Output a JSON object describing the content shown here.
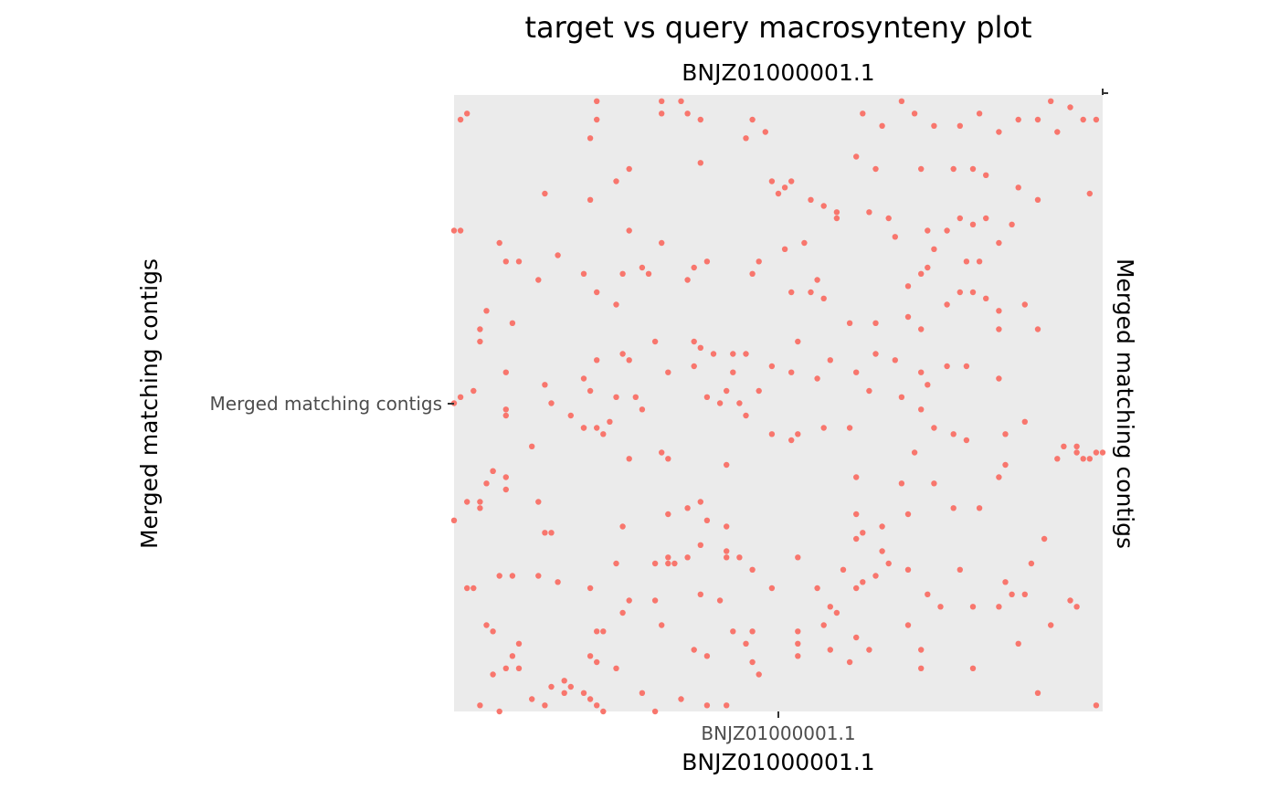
{
  "chart_data": {
    "type": "scatter",
    "title": "target vs query macrosynteny plot",
    "xlabel": "BNJZ01000001.1",
    "xlabel_top": "BNJZ01000001.1",
    "ylabel": "Merged matching contigs",
    "ylabel_right": "Merged matching contigs",
    "x_tick_labels": [
      "BNJZ01000001.1"
    ],
    "y_tick_labels": [
      "Merged matching contigs"
    ],
    "xlim": [
      0,
      1
    ],
    "ylim": [
      0,
      1
    ],
    "grid": false,
    "panel_background": "#ebebeb",
    "point_color": "#f8766d",
    "series": [
      {
        "points": [
          [
            0.01,
            0.96
          ],
          [
            0.02,
            0.97
          ],
          [
            0.22,
            0.99
          ],
          [
            0.22,
            0.96
          ],
          [
            0.21,
            0.93
          ],
          [
            0.32,
            0.99
          ],
          [
            0.35,
            0.99
          ],
          [
            0.32,
            0.97
          ],
          [
            0.36,
            0.97
          ],
          [
            0.38,
            0.96
          ],
          [
            0.46,
            0.96
          ],
          [
            0.48,
            0.94
          ],
          [
            0.45,
            0.93
          ],
          [
            0.63,
            0.97
          ],
          [
            0.66,
            0.95
          ],
          [
            0.69,
            0.99
          ],
          [
            0.71,
            0.97
          ],
          [
            0.74,
            0.95
          ],
          [
            0.78,
            0.95
          ],
          [
            0.81,
            0.97
          ],
          [
            0.84,
            0.94
          ],
          [
            0.87,
            0.96
          ],
          [
            0.9,
            0.96
          ],
          [
            0.92,
            0.99
          ],
          [
            0.95,
            0.98
          ],
          [
            0.97,
            0.96
          ],
          [
            0.99,
            0.96
          ],
          [
            0.93,
            0.94
          ],
          [
            0.27,
            0.88
          ],
          [
            0.25,
            0.86
          ],
          [
            0.38,
            0.89
          ],
          [
            0.49,
            0.86
          ],
          [
            0.5,
            0.84
          ],
          [
            0.51,
            0.85
          ],
          [
            0.52,
            0.86
          ],
          [
            0.55,
            0.83
          ],
          [
            0.57,
            0.82
          ],
          [
            0.59,
            0.81
          ],
          [
            0.62,
            0.9
          ],
          [
            0.65,
            0.88
          ],
          [
            0.72,
            0.88
          ],
          [
            0.77,
            0.88
          ],
          [
            0.8,
            0.88
          ],
          [
            0.82,
            0.87
          ],
          [
            0.87,
            0.85
          ],
          [
            0.9,
            0.83
          ],
          [
            0.98,
            0.84
          ],
          [
            0.14,
            0.84
          ],
          [
            0.21,
            0.83
          ],
          [
            0.13,
            0.7
          ],
          [
            0.0,
            0.78
          ],
          [
            0.01,
            0.78
          ],
          [
            0.07,
            0.76
          ],
          [
            0.08,
            0.73
          ],
          [
            0.1,
            0.73
          ],
          [
            0.16,
            0.74
          ],
          [
            0.2,
            0.71
          ],
          [
            0.27,
            0.78
          ],
          [
            0.32,
            0.76
          ],
          [
            0.39,
            0.73
          ],
          [
            0.46,
            0.71
          ],
          [
            0.47,
            0.73
          ],
          [
            0.51,
            0.75
          ],
          [
            0.54,
            0.76
          ],
          [
            0.59,
            0.8
          ],
          [
            0.64,
            0.81
          ],
          [
            0.67,
            0.8
          ],
          [
            0.68,
            0.77
          ],
          [
            0.73,
            0.78
          ],
          [
            0.74,
            0.75
          ],
          [
            0.76,
            0.78
          ],
          [
            0.78,
            0.8
          ],
          [
            0.8,
            0.79
          ],
          [
            0.82,
            0.8
          ],
          [
            0.86,
            0.79
          ],
          [
            0.84,
            0.76
          ],
          [
            0.81,
            0.73
          ],
          [
            0.79,
            0.73
          ],
          [
            0.73,
            0.72
          ],
          [
            0.72,
            0.71
          ],
          [
            0.7,
            0.69
          ],
          [
            0.26,
            0.71
          ],
          [
            0.29,
            0.72
          ],
          [
            0.3,
            0.71
          ],
          [
            0.36,
            0.7
          ],
          [
            0.37,
            0.72
          ],
          [
            0.22,
            0.68
          ],
          [
            0.25,
            0.66
          ],
          [
            0.09,
            0.63
          ],
          [
            0.05,
            0.65
          ],
          [
            0.04,
            0.62
          ],
          [
            0.04,
            0.6
          ],
          [
            0.08,
            0.55
          ],
          [
            0.01,
            0.51
          ],
          [
            0.0,
            0.5
          ],
          [
            0.08,
            0.49
          ],
          [
            0.31,
            0.6
          ],
          [
            0.38,
            0.59
          ],
          [
            0.4,
            0.58
          ],
          [
            0.56,
            0.7
          ],
          [
            0.52,
            0.68
          ],
          [
            0.55,
            0.68
          ],
          [
            0.57,
            0.67
          ],
          [
            0.61,
            0.63
          ],
          [
            0.65,
            0.63
          ],
          [
            0.7,
            0.64
          ],
          [
            0.72,
            0.62
          ],
          [
            0.76,
            0.66
          ],
          [
            0.78,
            0.68
          ],
          [
            0.8,
            0.68
          ],
          [
            0.82,
            0.67
          ],
          [
            0.84,
            0.65
          ],
          [
            0.84,
            0.62
          ],
          [
            0.88,
            0.66
          ],
          [
            0.9,
            0.62
          ],
          [
            0.37,
            0.6
          ],
          [
            0.45,
            0.58
          ],
          [
            0.49,
            0.56
          ],
          [
            0.53,
            0.6
          ],
          [
            0.58,
            0.57
          ],
          [
            0.62,
            0.55
          ],
          [
            0.65,
            0.58
          ],
          [
            0.68,
            0.57
          ],
          [
            0.72,
            0.55
          ],
          [
            0.76,
            0.56
          ],
          [
            0.79,
            0.56
          ],
          [
            0.84,
            0.54
          ],
          [
            0.73,
            0.53
          ],
          [
            0.64,
            0.52
          ],
          [
            0.56,
            0.54
          ],
          [
            0.52,
            0.55
          ],
          [
            0.47,
            0.52
          ],
          [
            0.2,
            0.54
          ],
          [
            0.22,
            0.57
          ],
          [
            0.26,
            0.58
          ],
          [
            0.27,
            0.57
          ],
          [
            0.21,
            0.52
          ],
          [
            0.25,
            0.51
          ],
          [
            0.28,
            0.51
          ],
          [
            0.33,
            0.55
          ],
          [
            0.37,
            0.56
          ],
          [
            0.43,
            0.58
          ],
          [
            0.43,
            0.55
          ],
          [
            0.42,
            0.52
          ],
          [
            0.44,
            0.5
          ],
          [
            0.45,
            0.48
          ],
          [
            0.41,
            0.5
          ],
          [
            0.39,
            0.51
          ],
          [
            0.03,
            0.52
          ],
          [
            0.08,
            0.48
          ],
          [
            0.14,
            0.53
          ],
          [
            0.15,
            0.5
          ],
          [
            0.18,
            0.48
          ],
          [
            0.2,
            0.46
          ],
          [
            0.23,
            0.45
          ],
          [
            0.24,
            0.47
          ],
          [
            0.22,
            0.46
          ],
          [
            0.29,
            0.49
          ],
          [
            0.32,
            0.42
          ],
          [
            0.33,
            0.41
          ],
          [
            0.49,
            0.45
          ],
          [
            0.53,
            0.45
          ],
          [
            0.57,
            0.46
          ],
          [
            0.61,
            0.46
          ],
          [
            0.69,
            0.51
          ],
          [
            0.72,
            0.49
          ],
          [
            0.77,
            0.45
          ],
          [
            0.79,
            0.44
          ],
          [
            0.71,
            0.42
          ],
          [
            0.74,
            0.46
          ],
          [
            0.96,
            0.43
          ],
          [
            0.97,
            0.41
          ],
          [
            0.98,
            0.41
          ],
          [
            0.99,
            0.42
          ],
          [
            1.0,
            0.42
          ],
          [
            0.93,
            0.41
          ],
          [
            0.85,
            0.4
          ],
          [
            0.84,
            0.38
          ],
          [
            0.27,
            0.41
          ],
          [
            0.2,
            0.46
          ],
          [
            0.12,
            0.43
          ],
          [
            0.06,
            0.39
          ],
          [
            0.06,
            0.39
          ],
          [
            0.05,
            0.37
          ],
          [
            0.04,
            0.34
          ],
          [
            0.02,
            0.34
          ],
          [
            0.0,
            0.31
          ],
          [
            0.04,
            0.33
          ],
          [
            0.13,
            0.34
          ],
          [
            0.14,
            0.29
          ],
          [
            0.15,
            0.29
          ],
          [
            0.08,
            0.38
          ],
          [
            0.08,
            0.36
          ],
          [
            0.42,
            0.4
          ],
          [
            0.52,
            0.44
          ],
          [
            0.38,
            0.34
          ],
          [
            0.33,
            0.32
          ],
          [
            0.36,
            0.33
          ],
          [
            0.39,
            0.31
          ],
          [
            0.42,
            0.3
          ],
          [
            0.44,
            0.25
          ],
          [
            0.46,
            0.23
          ],
          [
            0.38,
            0.27
          ],
          [
            0.31,
            0.24
          ],
          [
            0.26,
            0.3
          ],
          [
            0.25,
            0.24
          ],
          [
            0.33,
            0.25
          ],
          [
            0.34,
            0.24
          ],
          [
            0.36,
            0.25
          ],
          [
            0.42,
            0.26
          ],
          [
            0.21,
            0.2
          ],
          [
            0.16,
            0.21
          ],
          [
            0.22,
            0.13
          ],
          [
            0.02,
            0.2
          ],
          [
            0.03,
            0.2
          ],
          [
            0.05,
            0.14
          ],
          [
            0.06,
            0.13
          ],
          [
            0.09,
            0.22
          ],
          [
            0.13,
            0.22
          ],
          [
            0.07,
            0.22
          ],
          [
            0.1,
            0.11
          ],
          [
            0.09,
            0.09
          ],
          [
            0.1,
            0.07
          ],
          [
            0.06,
            0.06
          ],
          [
            0.08,
            0.07
          ],
          [
            0.04,
            0.01
          ],
          [
            0.07,
            0.0
          ],
          [
            0.14,
            0.01
          ],
          [
            0.17,
            0.05
          ],
          [
            0.15,
            0.04
          ],
          [
            0.12,
            0.02
          ],
          [
            0.18,
            0.04
          ],
          [
            0.2,
            0.03
          ],
          [
            0.17,
            0.03
          ],
          [
            0.21,
            0.02
          ],
          [
            0.22,
            0.08
          ],
          [
            0.21,
            0.09
          ],
          [
            0.25,
            0.07
          ],
          [
            0.22,
            0.01
          ],
          [
            0.23,
            0.0
          ],
          [
            0.29,
            0.03
          ],
          [
            0.31,
            0.0
          ],
          [
            0.35,
            0.02
          ],
          [
            0.39,
            0.01
          ],
          [
            0.42,
            0.01
          ],
          [
            0.47,
            0.06
          ],
          [
            0.46,
            0.08
          ],
          [
            0.37,
            0.1
          ],
          [
            0.39,
            0.09
          ],
          [
            0.32,
            0.14
          ],
          [
            0.26,
            0.16
          ],
          [
            0.27,
            0.18
          ],
          [
            0.23,
            0.13
          ],
          [
            0.31,
            0.18
          ],
          [
            0.33,
            0.24
          ],
          [
            0.38,
            0.19
          ],
          [
            0.41,
            0.18
          ],
          [
            0.43,
            0.13
          ],
          [
            0.45,
            0.11
          ],
          [
            0.53,
            0.11
          ],
          [
            0.53,
            0.13
          ],
          [
            0.58,
            0.17
          ],
          [
            0.59,
            0.16
          ],
          [
            0.63,
            0.21
          ],
          [
            0.62,
            0.2
          ],
          [
            0.65,
            0.22
          ],
          [
            0.63,
            0.29
          ],
          [
            0.62,
            0.28
          ],
          [
            0.66,
            0.26
          ],
          [
            0.67,
            0.24
          ],
          [
            0.66,
            0.3
          ],
          [
            0.7,
            0.23
          ],
          [
            0.73,
            0.19
          ],
          [
            0.75,
            0.17
          ],
          [
            0.78,
            0.23
          ],
          [
            0.8,
            0.17
          ],
          [
            0.84,
            0.17
          ],
          [
            0.86,
            0.19
          ],
          [
            0.88,
            0.19
          ],
          [
            0.95,
            0.18
          ],
          [
            0.96,
            0.17
          ],
          [
            0.62,
            0.12
          ],
          [
            0.64,
            0.1
          ],
          [
            0.61,
            0.08
          ],
          [
            0.57,
            0.14
          ],
          [
            0.53,
            0.09
          ],
          [
            0.46,
            0.13
          ],
          [
            0.42,
            0.25
          ],
          [
            0.49,
            0.2
          ],
          [
            0.53,
            0.25
          ],
          [
            0.56,
            0.2
          ],
          [
            0.6,
            0.23
          ],
          [
            0.77,
            0.33
          ],
          [
            0.81,
            0.33
          ],
          [
            0.7,
            0.32
          ],
          [
            0.74,
            0.37
          ],
          [
            0.69,
            0.37
          ],
          [
            0.62,
            0.38
          ],
          [
            0.62,
            0.32
          ],
          [
            0.58,
            0.1
          ],
          [
            0.72,
            0.1
          ],
          [
            0.7,
            0.14
          ],
          [
            0.72,
            0.07
          ],
          [
            0.8,
            0.07
          ],
          [
            0.9,
            0.03
          ],
          [
            0.99,
            0.01
          ],
          [
            0.87,
            0.11
          ],
          [
            0.92,
            0.14
          ],
          [
            0.89,
            0.24
          ],
          [
            0.85,
            0.21
          ],
          [
            0.91,
            0.28
          ],
          [
            0.96,
            0.42
          ],
          [
            0.88,
            0.47
          ],
          [
            0.85,
            0.45
          ],
          [
            0.94,
            0.43
          ]
        ]
      }
    ]
  }
}
